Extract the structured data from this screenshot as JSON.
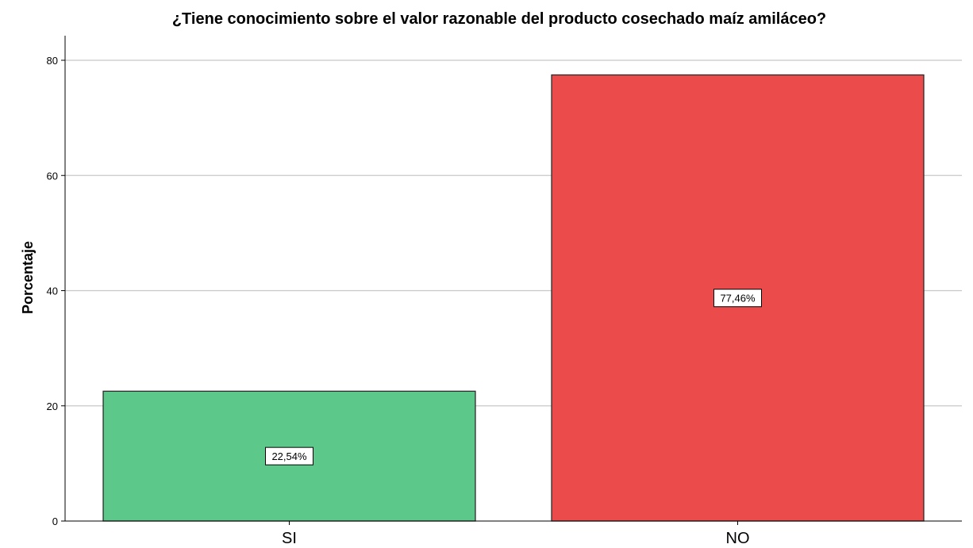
{
  "chart_data": {
    "type": "bar",
    "title": "¿Tiene conocimiento sobre el valor razonable del producto cosechado maíz amiláceo?",
    "xlabel": "",
    "ylabel": "Porcentaje",
    "categories": [
      "SI",
      "NO"
    ],
    "values": [
      22.54,
      77.46
    ],
    "data_labels": [
      "22,54%",
      "77,46%"
    ],
    "colors": [
      "#5CC98A",
      "#EB4B4B"
    ],
    "ylim": [
      0,
      80
    ],
    "yticks": [
      0,
      20,
      40,
      60,
      80
    ],
    "grid": true
  }
}
